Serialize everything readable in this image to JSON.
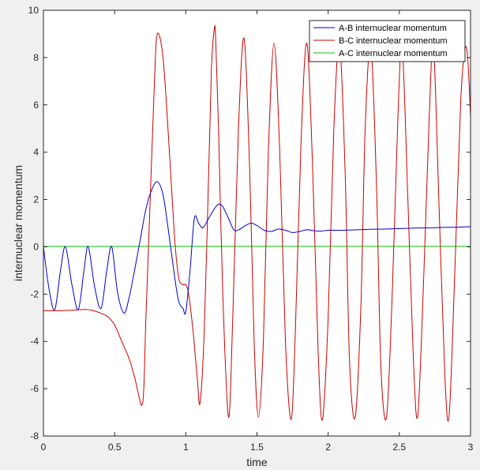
{
  "chart_data": {
    "type": "line",
    "title": "",
    "xlabel": "time",
    "ylabel": "internuclear momentum",
    "xlim": [
      0,
      3
    ],
    "ylim": [
      -8,
      10
    ],
    "xticks": [
      0,
      0.5,
      1,
      1.5,
      2,
      2.5,
      3
    ],
    "xtick_labels": [
      "0",
      "0.5",
      "1",
      "1.5",
      "2",
      "2.5",
      "3"
    ],
    "yticks": [
      -8,
      -6,
      -4,
      -2,
      0,
      2,
      4,
      6,
      8,
      10
    ],
    "ytick_labels": [
      "-8",
      "-6",
      "-4",
      "-2",
      "0",
      "2",
      "4",
      "6",
      "8",
      "10"
    ],
    "grid": false,
    "legend_position": "top-right",
    "series": [
      {
        "name": "A-B internuclear momentum",
        "color": "#0000cc",
        "x": [
          0,
          0.04,
          0.08,
          0.12,
          0.155,
          0.2,
          0.245,
          0.285,
          0.315,
          0.36,
          0.405,
          0.445,
          0.48,
          0.52,
          0.565,
          0.6,
          0.64,
          0.68,
          0.72,
          0.76,
          0.8,
          0.84,
          0.88,
          0.92,
          0.95,
          0.98,
          1.0,
          1.03,
          1.06,
          1.09,
          1.12,
          1.16,
          1.2,
          1.23,
          1.26,
          1.3,
          1.34,
          1.38,
          1.42,
          1.46,
          1.5,
          1.55,
          1.6,
          1.65,
          1.7,
          1.75,
          1.8,
          1.85,
          1.9,
          1.95,
          2.0,
          2.1,
          2.2,
          2.3,
          2.4,
          2.5,
          2.6,
          2.7,
          2.8,
          2.9,
          3.0
        ],
        "y": [
          0.0,
          -1.8,
          -2.65,
          -1.0,
          0.0,
          -1.6,
          -2.65,
          -1.0,
          0.0,
          -1.7,
          -2.6,
          -1.0,
          0.0,
          -1.9,
          -2.8,
          -2.2,
          -1.0,
          0.3,
          1.6,
          2.4,
          2.75,
          2.2,
          0.6,
          -1.2,
          -2.3,
          -2.6,
          -2.75,
          -1.0,
          1.2,
          1.0,
          0.8,
          1.2,
          1.6,
          1.8,
          1.7,
          1.2,
          0.7,
          0.75,
          0.9,
          1.0,
          0.9,
          0.7,
          0.65,
          0.75,
          0.7,
          0.6,
          0.65,
          0.72,
          0.68,
          0.66,
          0.7,
          0.7,
          0.72,
          0.74,
          0.75,
          0.77,
          0.79,
          0.8,
          0.82,
          0.83,
          0.85
        ]
      },
      {
        "name": "B-C internuclear momentum",
        "color": "#cc0000",
        "x": [
          0,
          0.1,
          0.2,
          0.3,
          0.35,
          0.4,
          0.45,
          0.5,
          0.55,
          0.6,
          0.64,
          0.67,
          0.69,
          0.705,
          0.72,
          0.75,
          0.78,
          0.8,
          0.84,
          0.88,
          0.92,
          0.95,
          0.98,
          1.0,
          1.02,
          1.05,
          1.08,
          1.1,
          1.13,
          1.16,
          1.18,
          1.2,
          1.21,
          1.23,
          1.26,
          1.3,
          1.33,
          1.37,
          1.41,
          1.45,
          1.48,
          1.51,
          1.545,
          1.58,
          1.62,
          1.66,
          1.7,
          1.74,
          1.77,
          1.81,
          1.85,
          1.89,
          1.93,
          1.96,
          2.0,
          2.04,
          2.08,
          2.12,
          2.15,
          2.19,
          2.23,
          2.26,
          2.3,
          2.34,
          2.37,
          2.41,
          2.45,
          2.49,
          2.52,
          2.56,
          2.6,
          2.63,
          2.67,
          2.71,
          2.74,
          2.78,
          2.82,
          2.85,
          2.89,
          2.93,
          2.96,
          2.98,
          3.0
        ],
        "y": [
          -2.7,
          -2.7,
          -2.68,
          -2.65,
          -2.7,
          -2.8,
          -2.95,
          -3.3,
          -4.0,
          -4.7,
          -5.5,
          -6.3,
          -6.7,
          -6.0,
          -3.0,
          2.0,
          7.0,
          9.0,
          8.0,
          4.5,
          0.5,
          -1.3,
          -1.6,
          -1.6,
          -2.0,
          -3.5,
          -5.5,
          -6.6,
          -3.5,
          3.0,
          7.5,
          9.2,
          8.8,
          5.0,
          -2.0,
          -7.2,
          -3.0,
          5.0,
          8.8,
          3.0,
          -4.0,
          -7.2,
          -4.0,
          4.0,
          8.6,
          4.0,
          -4.0,
          -7.3,
          -3.5,
          4.5,
          8.6,
          3.5,
          -4.5,
          -7.3,
          -3.0,
          5.0,
          8.6,
          3.0,
          -4.8,
          -7.2,
          -2.5,
          5.0,
          8.5,
          2.5,
          -5.0,
          -7.2,
          -2.0,
          5.5,
          8.5,
          2.0,
          -5.0,
          -7.1,
          -1.5,
          5.5,
          8.5,
          1.5,
          -5.5,
          -7.1,
          -1.0,
          6.0,
          8.3,
          8.0,
          5.5
        ]
      },
      {
        "name": "A-C internuclear momentum",
        "color": "#00cc00",
        "x": [
          0,
          3
        ],
        "y": [
          0.02,
          0.02
        ]
      }
    ]
  }
}
